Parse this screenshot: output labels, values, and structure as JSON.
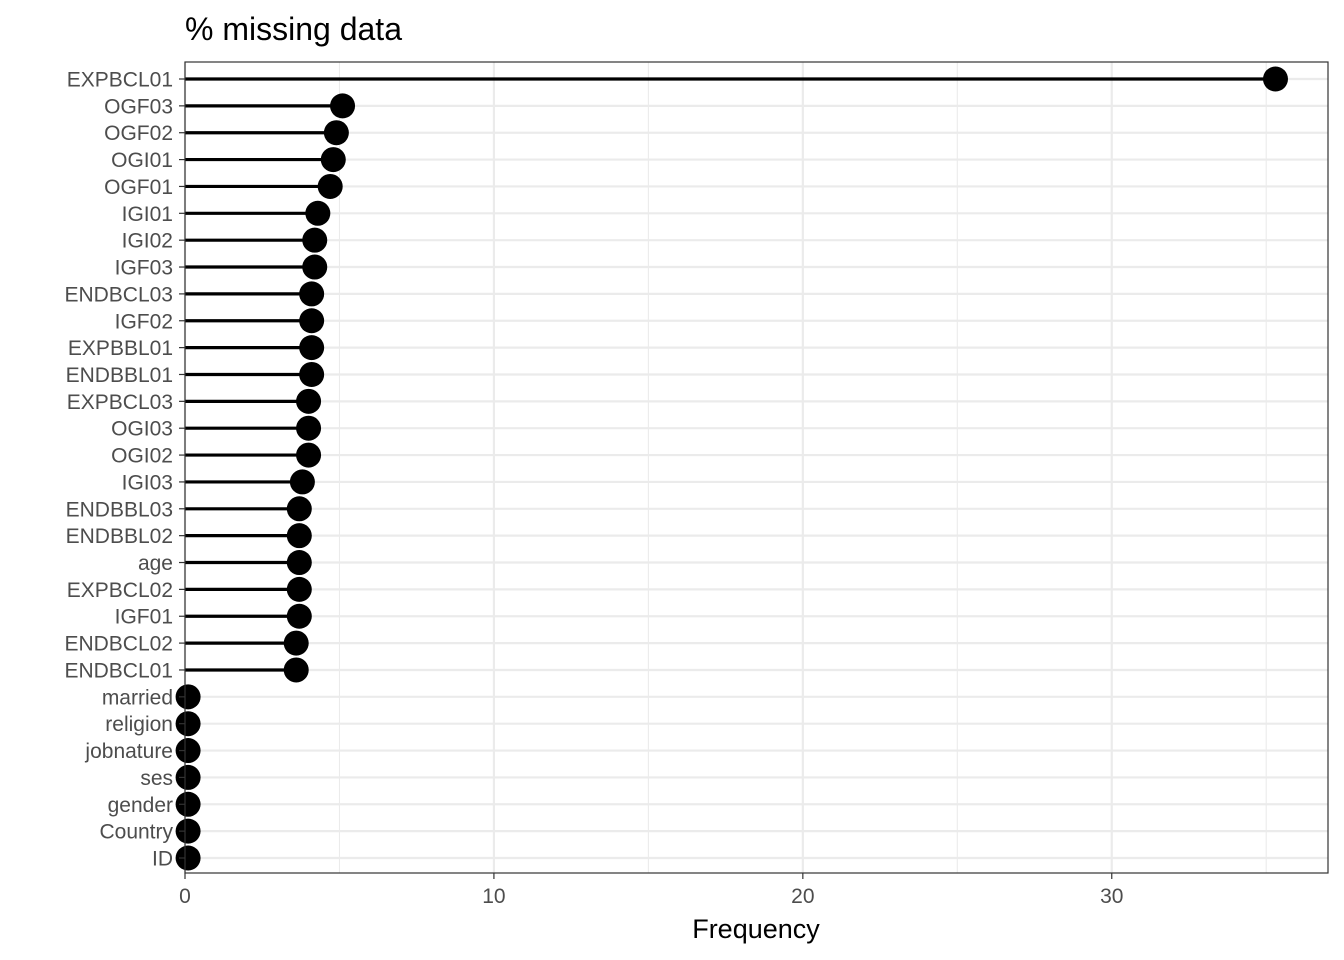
{
  "chart_data": {
    "type": "lollipop",
    "orientation": "horizontal",
    "title": "% missing data",
    "xlabel": "Frequency",
    "ylabel": "",
    "xlim": [
      0,
      37
    ],
    "x_ticks": [
      0,
      10,
      20,
      30
    ],
    "x_tick_labels": [
      "0",
      "10",
      "20",
      "30"
    ],
    "grid": true,
    "legend": "none",
    "colors": {
      "mark": "#000000",
      "grid": "#ebebeb",
      "panel_border": "#333333",
      "tick_text": "#4d4d4d"
    },
    "categories": [
      "EXPBCL01",
      "OGF03",
      "OGF02",
      "OGI01",
      "OGF01",
      "IGI01",
      "IGI02",
      "IGF03",
      "ENDBCL03",
      "IGF02",
      "EXPBBL01",
      "ENDBBL01",
      "EXPBCL03",
      "OGI03",
      "OGI02",
      "IGI03",
      "ENDBBL03",
      "ENDBBL02",
      "age",
      "EXPBCL02",
      "IGF01",
      "ENDBCL02",
      "ENDBCL01",
      "married",
      "religion",
      "jobnature",
      "ses",
      "gender",
      "Country",
      "ID"
    ],
    "values": [
      35.3,
      5.1,
      4.9,
      4.8,
      4.7,
      4.3,
      4.2,
      4.2,
      4.1,
      4.1,
      4.1,
      4.1,
      4.0,
      4.0,
      4.0,
      3.8,
      3.7,
      3.7,
      3.7,
      3.7,
      3.7,
      3.6,
      3.6,
      0.1,
      0.1,
      0.1,
      0.1,
      0.1,
      0.1,
      0.1
    ]
  }
}
